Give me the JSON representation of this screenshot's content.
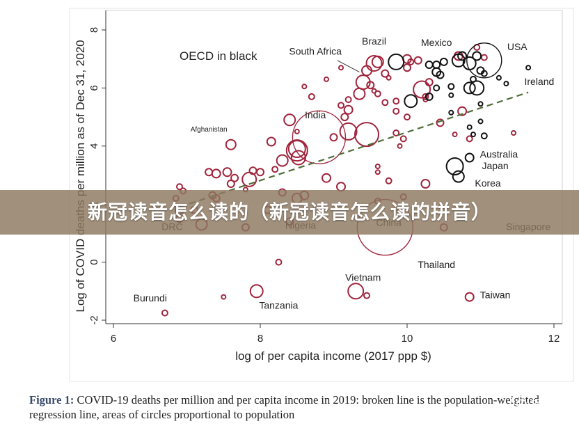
{
  "banner": {
    "text": "新冠读音怎么读的（新冠读音怎么读的拼音）"
  },
  "caption": {
    "label": "Figure 1:",
    "text": "COVID-19 deaths per million and per capita income in 2019: broken line is the population-weighted regression line, areas of circles proportional to population"
  },
  "brand": {
    "name": "城读",
    "icon": "wechat-icon"
  },
  "colors": {
    "non_oecd": "#a0243c",
    "oecd": "#111111",
    "regression": "#4f6d38",
    "banner": "#8c785f"
  },
  "chart_data": {
    "type": "scatter",
    "title": "",
    "xlabel": "log of per capita income (2017 ppp $)",
    "ylabel": "Log of COVID deaths per million as of Dec 31, 2020",
    "xlim": [
      6,
      12
    ],
    "ylim": [
      -2,
      8
    ],
    "xticks": [
      6,
      8,
      10,
      12
    ],
    "yticks": [
      -2,
      0,
      2,
      4,
      6,
      8
    ],
    "legend_note": "OECD in black",
    "regression_line": {
      "x": [
        6.9,
        11.65
      ],
      "y": [
        1.9,
        5.85
      ]
    },
    "labels": [
      {
        "text": "Brazil",
        "x": 9.55,
        "y": 7.5
      },
      {
        "text": "Mexico",
        "x": 10.4,
        "y": 7.45
      },
      {
        "text": "USA",
        "x": 11.5,
        "y": 7.3
      },
      {
        "text": "South Africa",
        "x": 8.75,
        "y": 7.15
      },
      {
        "text": "Ireland",
        "x": 11.8,
        "y": 6.1
      },
      {
        "text": "India",
        "x": 8.75,
        "y": 4.95
      },
      {
        "text": "Afghanistan",
        "x": 7.3,
        "y": 4.5
      },
      {
        "text": "Australia",
        "x": 11.25,
        "y": 3.6
      },
      {
        "text": "Japan",
        "x": 11.2,
        "y": 3.2
      },
      {
        "text": "Korea",
        "x": 11.1,
        "y": 2.6
      },
      {
        "text": "DRC",
        "x": 6.8,
        "y": 1.1
      },
      {
        "text": "Nigeria",
        "x": 8.55,
        "y": 1.15
      },
      {
        "text": "China",
        "x": 9.75,
        "y": 1.25
      },
      {
        "text": "Singapore",
        "x": 11.65,
        "y": 1.1
      },
      {
        "text": "Thailand",
        "x": 10.4,
        "y": -0.2
      },
      {
        "text": "Vietnam",
        "x": 9.4,
        "y": -0.65
      },
      {
        "text": "Taiwan",
        "x": 11.2,
        "y": -1.25
      },
      {
        "text": "Burundi",
        "x": 6.5,
        "y": -1.35
      },
      {
        "text": "Tanzania",
        "x": 8.25,
        "y": -1.6
      }
    ],
    "series": [
      {
        "name": "non-OECD",
        "color": "#a0243c",
        "points": [
          [
            8.8,
            4.3,
            38
          ],
          [
            9.7,
            1.2,
            40
          ],
          [
            9.45,
            4.4,
            17
          ],
          [
            9.2,
            4.5,
            12
          ],
          [
            9.55,
            6.85,
            11
          ],
          [
            9.6,
            6.9,
            8
          ],
          [
            9.4,
            6.2,
            10
          ],
          [
            9.35,
            5.8,
            8
          ],
          [
            9.2,
            5.25,
            6
          ],
          [
            9.45,
            6.6,
            7
          ],
          [
            9.7,
            6.5,
            5
          ],
          [
            9.5,
            6.1,
            5
          ],
          [
            8.5,
            3.85,
            15
          ],
          [
            8.5,
            3.9,
            12
          ],
          [
            8.52,
            3.6,
            10
          ],
          [
            8.4,
            4.9,
            8
          ],
          [
            8.3,
            3.5,
            8
          ],
          [
            8.5,
            2.2,
            7
          ],
          [
            8.6,
            2.3,
            6
          ],
          [
            8.9,
            2.9,
            6
          ],
          [
            9.1,
            2.6,
            6
          ],
          [
            7.85,
            2.85,
            10
          ],
          [
            7.65,
            2.9,
            5
          ],
          [
            7.6,
            4.05,
            7
          ],
          [
            7.55,
            3.1,
            6
          ],
          [
            8.15,
            4.15,
            6
          ],
          [
            7.9,
            3.15,
            5
          ],
          [
            7.4,
            2.2,
            5
          ],
          [
            6.95,
            2.45,
            4
          ],
          [
            6.9,
            2.6,
            4
          ],
          [
            6.85,
            2.2,
            4
          ],
          [
            6.9,
            1.8,
            6
          ],
          [
            7.2,
            1.3,
            8
          ],
          [
            7.1,
            1.8,
            5
          ],
          [
            7.35,
            2.3,
            5
          ],
          [
            7.4,
            3.05,
            6
          ],
          [
            7.3,
            3.1,
            5
          ],
          [
            7.6,
            2.7,
            5
          ],
          [
            8.0,
            3.1,
            5
          ],
          [
            8.2,
            3.2,
            4
          ],
          [
            8.3,
            2.4,
            5
          ],
          [
            8.1,
            1.8,
            5
          ],
          [
            8.4,
            1.4,
            5
          ],
          [
            7.8,
            1.2,
            5
          ],
          [
            6.9,
            1.5,
            5
          ],
          [
            7.95,
            -1.0,
            9
          ],
          [
            9.3,
            -1.0,
            11
          ],
          [
            8.25,
            0.0,
            4
          ],
          [
            9.45,
            -1.15,
            4
          ],
          [
            7.5,
            -1.2,
            3
          ],
          [
            6.7,
            -1.75,
            4
          ],
          [
            10.0,
            7.0,
            6
          ],
          [
            10.15,
            6.95,
            5
          ],
          [
            10.05,
            6.9,
            4
          ],
          [
            10.0,
            6.7,
            5
          ],
          [
            10.2,
            5.95,
            12
          ],
          [
            10.3,
            6.2,
            5
          ],
          [
            10.75,
            5.2,
            6
          ],
          [
            10.45,
            4.8,
            5
          ],
          [
            10.65,
            4.4,
            3
          ],
          [
            10.85,
            4.25,
            4
          ],
          [
            11.45,
            4.45,
            3
          ],
          [
            10.95,
            7.4,
            4
          ],
          [
            11.05,
            7.05,
            4
          ],
          [
            10.7,
            7.1,
            6
          ],
          [
            10.25,
            5.7,
            4
          ],
          [
            10.25,
            2.7,
            6
          ],
          [
            10.5,
            1.2,
            5
          ],
          [
            10.85,
            -1.2,
            6
          ],
          [
            9.0,
            4.3,
            5
          ],
          [
            9.15,
            5.0,
            5
          ],
          [
            9.2,
            5.6,
            4
          ],
          [
            8.7,
            5.7,
            4
          ],
          [
            9.1,
            5.4,
            4
          ],
          [
            9.7,
            5.5,
            4
          ],
          [
            9.85,
            5.55,
            4
          ],
          [
            9.85,
            5.2,
            4
          ],
          [
            10.0,
            5.0,
            4
          ],
          [
            9.6,
            5.8,
            4
          ],
          [
            9.95,
            4.25,
            4
          ],
          [
            9.9,
            4.0,
            3
          ],
          [
            9.85,
            4.45,
            4
          ],
          [
            9.6,
            3.3,
            3
          ],
          [
            9.6,
            3.1,
            3
          ],
          [
            9.75,
            2.8,
            4
          ],
          [
            9.6,
            2.1,
            4
          ],
          [
            9.9,
            1.75,
            4
          ],
          [
            9.95,
            2.25,
            4
          ],
          [
            8.6,
            6.05,
            3
          ],
          [
            8.9,
            6.3,
            3
          ],
          [
            9.1,
            6.7,
            3
          ],
          [
            9.55,
            5.9,
            3
          ],
          [
            9.75,
            6.35,
            3
          ],
          [
            10.25,
            5.6,
            3
          ],
          [
            8.5,
            4.5,
            3
          ],
          [
            7.8,
            2.5,
            3
          ]
        ]
      },
      {
        "name": "OECD",
        "color": "#111111",
        "points": [
          [
            11.05,
            6.95,
            25
          ],
          [
            9.85,
            6.9,
            11
          ],
          [
            10.7,
            6.95,
            9
          ],
          [
            10.75,
            7.1,
            6
          ],
          [
            10.85,
            6.85,
            9
          ],
          [
            10.95,
            7.1,
            6
          ],
          [
            10.3,
            6.8,
            5
          ],
          [
            10.5,
            6.9,
            5
          ],
          [
            10.4,
            6.8,
            5
          ],
          [
            10.4,
            6.55,
            6
          ],
          [
            10.45,
            6.45,
            5
          ],
          [
            10.6,
            6.05,
            4
          ],
          [
            10.85,
            6.0,
            8
          ],
          [
            10.95,
            6.0,
            10
          ],
          [
            10.4,
            6.0,
            4
          ],
          [
            10.6,
            5.75,
            3
          ],
          [
            10.9,
            6.3,
            4
          ],
          [
            11.0,
            6.6,
            5
          ],
          [
            11.05,
            6.5,
            4
          ],
          [
            11.25,
            6.35,
            3
          ],
          [
            11.65,
            6.7,
            3
          ],
          [
            11.35,
            6.15,
            3
          ],
          [
            10.05,
            5.55,
            9
          ],
          [
            10.3,
            5.7,
            5
          ],
          [
            10.65,
            3.3,
            12
          ],
          [
            10.7,
            2.95,
            8
          ],
          [
            10.85,
            3.6,
            6
          ],
          [
            10.6,
            5.15,
            3
          ],
          [
            10.85,
            4.65,
            3
          ],
          [
            11.0,
            4.85,
            3
          ],
          [
            11.05,
            4.35,
            4
          ],
          [
            11.0,
            5.45,
            3
          ],
          [
            10.9,
            4.4,
            3
          ]
        ]
      }
    ]
  }
}
